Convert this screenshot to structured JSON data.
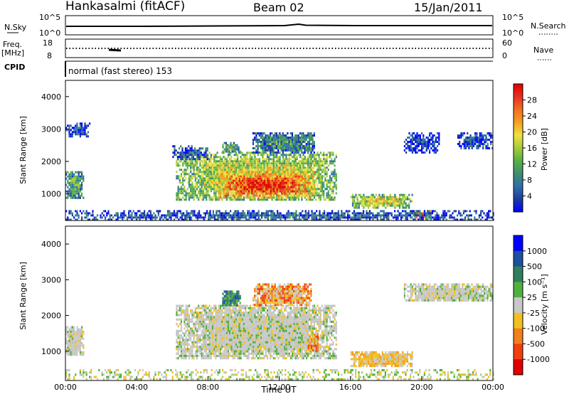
{
  "header": {
    "station": "Hankasalmi (fitACF)",
    "beam": "Beam 02",
    "date": "15/Jan/2011"
  },
  "top_panels": {
    "nsky_label": "N.Sky",
    "nsearch_label": "N.Search",
    "nsky_ticks": [
      "10^5",
      "10^0"
    ],
    "nsearch_ticks": [
      "10^5",
      "10^0"
    ],
    "freq_label": "Freq.",
    "freq_unit": "[MHz]",
    "freq_ticks": [
      "18",
      "8"
    ],
    "nave_label": "Nave",
    "nave_ticks": [
      "60",
      "0"
    ],
    "cpid_label": "CPID",
    "cpid_text": "normal (fast stereo) 153"
  },
  "chart_data": [
    {
      "type": "heatmap",
      "name": "power",
      "ylabel": "Slant Range [km]",
      "xlabel": "",
      "yticks": [
        "4000",
        "3000",
        "2000",
        "1000"
      ],
      "ylim": [
        180,
        4500
      ],
      "xlim": [
        0,
        24
      ],
      "colorbar": {
        "label": "Power [dB]",
        "ticks": [
          "28",
          "24",
          "20",
          "16",
          "12",
          "8",
          "4"
        ],
        "range": [
          0,
          32
        ],
        "colors": [
          "#0000ff",
          "#1e3c9e",
          "#2f6fa8",
          "#3e8f6f",
          "#59b044",
          "#a6cc3a",
          "#f0e040",
          "#f4a020",
          "#f07020",
          "#e83020",
          "#e00000"
        ]
      },
      "regions": [
        {
          "x0": 0.0,
          "x1": 1.0,
          "y0": 900,
          "y1": 1700,
          "level": 0.35
        },
        {
          "x0": 0.0,
          "x1": 1.4,
          "y0": 2800,
          "y1": 3200,
          "level": 0.15
        },
        {
          "x0": 6.2,
          "x1": 15.2,
          "y0": 800,
          "y1": 2300,
          "level": 0.55
        },
        {
          "x0": 8.5,
          "x1": 14.0,
          "y0": 900,
          "y1": 1700,
          "level": 0.85
        },
        {
          "x0": 6.0,
          "x1": 8.0,
          "y0": 2100,
          "y1": 2500,
          "level": 0.2
        },
        {
          "x0": 8.8,
          "x1": 9.8,
          "y0": 2300,
          "y1": 2600,
          "level": 0.4
        },
        {
          "x0": 10.5,
          "x1": 14.0,
          "y0": 2300,
          "y1": 2900,
          "level": 0.3
        },
        {
          "x0": 16.0,
          "x1": 19.5,
          "y0": 600,
          "y1": 1000,
          "level": 0.55
        },
        {
          "x0": 19.5,
          "x1": 20.5,
          "y0": 300,
          "y1": 500,
          "level": 0.8
        },
        {
          "x0": 19.0,
          "x1": 21.0,
          "y0": 2300,
          "y1": 2900,
          "level": 0.15
        },
        {
          "x0": 22.0,
          "x1": 24.0,
          "y0": 2400,
          "y1": 2900,
          "level": 0.15
        },
        {
          "x0": 0.0,
          "x1": 24.0,
          "y0": 200,
          "y1": 500,
          "level": 0.2
        }
      ]
    },
    {
      "type": "heatmap",
      "name": "velocity",
      "ylabel": "Slant Range [km]",
      "xlabel": "Time UT",
      "yticks": [
        "4000",
        "3000",
        "2000",
        "1000"
      ],
      "xticks": [
        "00:00",
        "04:00",
        "08:00",
        "12:00",
        "16:00",
        "20:00",
        "00:00"
      ],
      "ylim": [
        180,
        4500
      ],
      "xlim": [
        0,
        24
      ],
      "colorbar": {
        "label": "Velocity [m s⁻¹]",
        "ticks": [
          "1000",
          "500",
          "100",
          "25",
          "-25",
          "-100",
          "-500",
          "-1000"
        ],
        "colors": [
          "#0000ff",
          "#1e50a0",
          "#2f8060",
          "#50b040",
          "#c8c8c8",
          "#f0c020",
          "#f08020",
          "#f04010",
          "#e00000"
        ]
      },
      "regions": [
        {
          "x0": 0.0,
          "x1": 1.0,
          "y0": 900,
          "y1": 1700,
          "class": "grey"
        },
        {
          "x0": 6.2,
          "x1": 15.2,
          "y0": 800,
          "y1": 2300,
          "class": "grey"
        },
        {
          "x0": 8.8,
          "x1": 9.8,
          "y0": 2300,
          "y1": 2700,
          "class": "green"
        },
        {
          "x0": 10.5,
          "x1": 13.8,
          "y0": 2300,
          "y1": 2900,
          "class": "orange"
        },
        {
          "x0": 13.6,
          "x1": 14.2,
          "y0": 1000,
          "y1": 1500,
          "class": "orange"
        },
        {
          "x0": 16.0,
          "x1": 19.5,
          "y0": 600,
          "y1": 1000,
          "class": "yellow"
        },
        {
          "x0": 19.0,
          "x1": 24.0,
          "y0": 2400,
          "y1": 2900,
          "class": "grey"
        },
        {
          "x0": 0.0,
          "x1": 24.0,
          "y0": 200,
          "y1": 500,
          "class": "green-ground"
        }
      ]
    }
  ]
}
